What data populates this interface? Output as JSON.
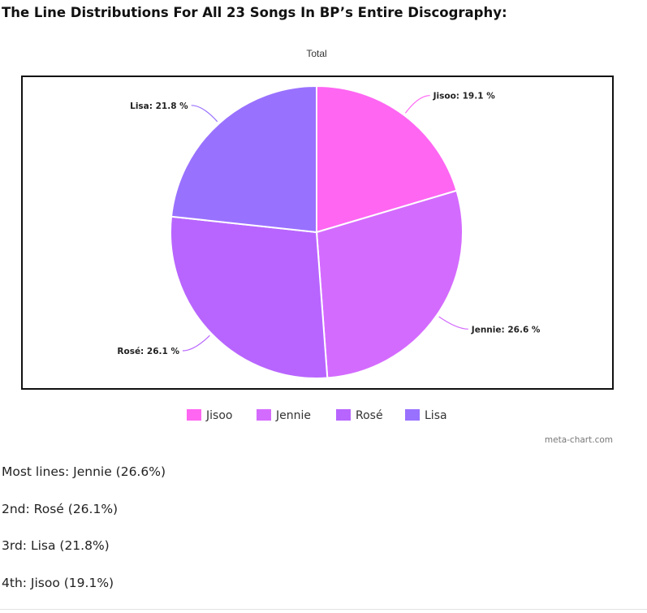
{
  "page": {
    "heading": "The Line Distributions For All 23 Songs In BP’s Entire Discography:"
  },
  "chart_data": {
    "type": "pie",
    "title": "Total",
    "slices": [
      {
        "label": "Jisoo",
        "value": 19.1,
        "display": "Jisoo: 19.1 %",
        "color": "#ff66f2"
      },
      {
        "label": "Jennie",
        "value": 26.6,
        "display": "Jennie: 26.6 %",
        "color": "#d46bff"
      },
      {
        "label": "Rosé",
        "value": 26.1,
        "display": "Rosé: 26.1 %",
        "color": "#b865ff"
      },
      {
        "label": "Lisa",
        "value": 21.8,
        "display": "Lisa: 21.8 %",
        "color": "#9971ff"
      }
    ],
    "legend": {
      "placement": "bottom",
      "entries": [
        "Jisoo",
        "Jennie",
        "Rosé",
        "Lisa"
      ]
    },
    "credit": "meta-chart.com"
  },
  "ranking": [
    "Most lines: Jennie (26.6%)",
    "2nd: Rosé (26.1%)",
    "3rd: Lisa (21.8%)",
    "4th: Jisoo (19.1%)"
  ]
}
